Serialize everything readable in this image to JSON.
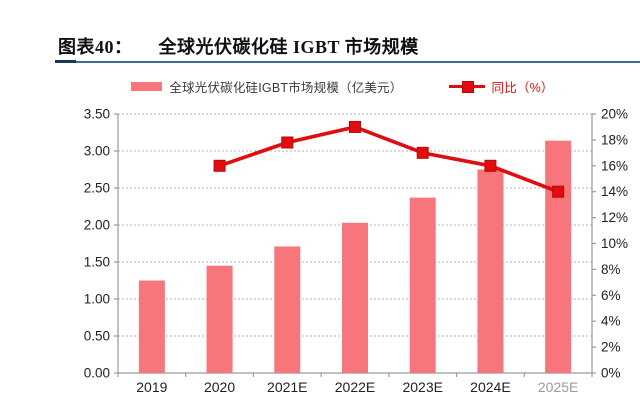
{
  "header": {
    "figure_label": "图表40：",
    "title": "全球光伏碳化硅 IGBT 市场规模"
  },
  "legend": {
    "bar_series_label": "全球光伏碳化硅IGBT市场规模（亿美元）",
    "line_series_label": "同比（%）"
  },
  "colors": {
    "bar": "#f7767c",
    "line": "#e00d10",
    "marker_edge": "#c00606",
    "grid": "#b3b3b3",
    "axis": "#9a9a9a",
    "tick_text": "#222222",
    "faded_tick_text": "#9b9b9b",
    "rule_main": "#3a6b9f",
    "rule_accent": "#17365d",
    "legend_red_text": "#d8100f"
  },
  "chart_data": {
    "type": "bar",
    "categories": [
      "2019",
      "2020",
      "2021E",
      "2022E",
      "2023E",
      "2024E",
      "2025E"
    ],
    "faded_categories": [
      "2025E"
    ],
    "series": [
      {
        "name": "全球光伏碳化硅IGBT市场规模（亿美元）",
        "type": "bar",
        "axis": "left",
        "values": [
          1.25,
          1.45,
          1.71,
          2.03,
          2.37,
          2.75,
          3.14
        ]
      },
      {
        "name": "同比（%）",
        "type": "line",
        "axis": "right",
        "values": [
          null,
          16,
          17.8,
          19,
          17,
          16,
          14
        ]
      }
    ],
    "title": "全球光伏碳化硅 IGBT 市场规模",
    "left_axis": {
      "min": 0,
      "max": 3.5,
      "step": 0.5,
      "tick_labels": [
        "0.00",
        "0.50",
        "1.00",
        "1.50",
        "2.00",
        "2.50",
        "3.00",
        "3.50"
      ]
    },
    "right_axis": {
      "min": 0,
      "max": 20,
      "step": 2,
      "tick_labels": [
        "0%",
        "2%",
        "4%",
        "6%",
        "8%",
        "10%",
        "12%",
        "14%",
        "16%",
        "18%",
        "20%"
      ]
    },
    "grid": "horizontal-dashed",
    "legend_position": "top-center"
  }
}
